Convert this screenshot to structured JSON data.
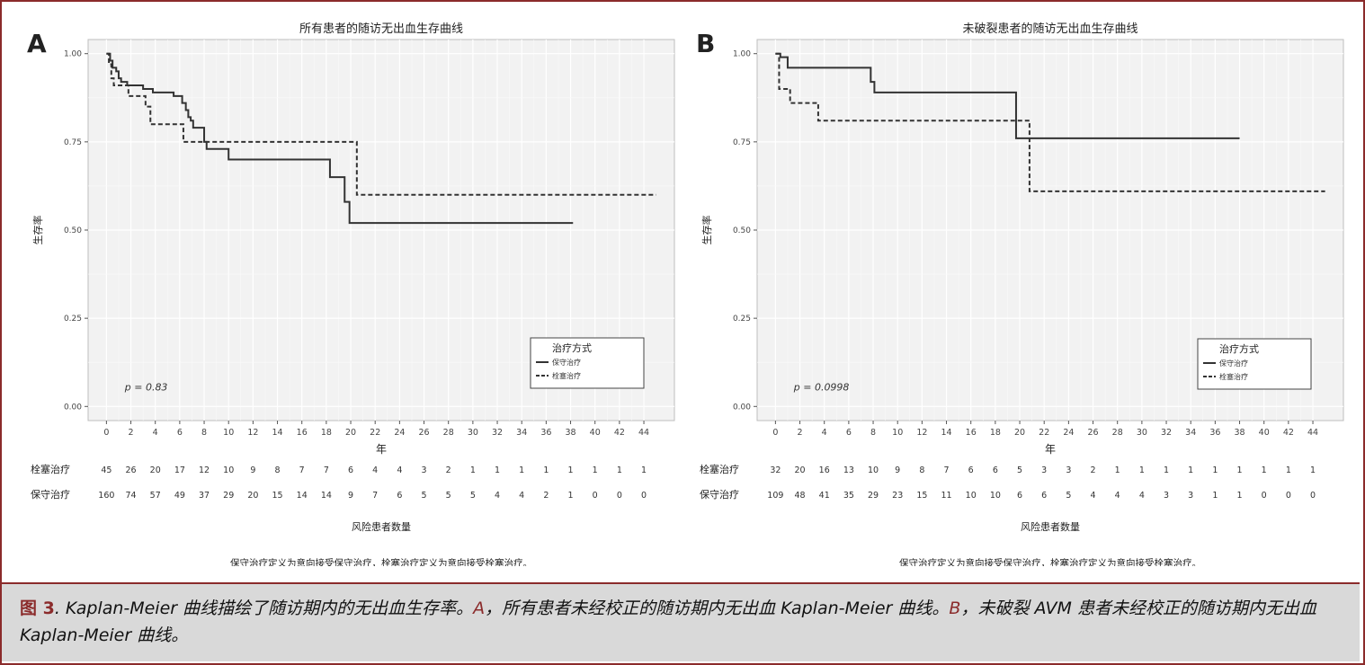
{
  "figure": {
    "fig_label": "图 3",
    "caption_intro": ". Kaplan-Meier 曲线描绘了随访期内的无出血生存率。",
    "caption_a_letter": "A",
    "caption_a_text": "，所有患者未经校正的随访期内无出血 Kaplan-Meier 曲线。",
    "caption_b_letter": "B",
    "caption_b_text": "，未破裂 AVM 患者未经校正的随访期内无出血 Kaplan-Meier 曲线。"
  },
  "chart_data": [
    {
      "type": "line",
      "panel_label": "A",
      "title": "所有患者的随访无出血生存曲线",
      "xlabel": "年",
      "ylabel": "生存率",
      "xlim": [
        -1.5,
        46.5
      ],
      "ylim": [
        -0.04,
        1.04
      ],
      "x_ticks": [
        0,
        2,
        4,
        6,
        8,
        10,
        12,
        14,
        16,
        18,
        20,
        22,
        24,
        26,
        28,
        30,
        32,
        34,
        36,
        38,
        40,
        42,
        44
      ],
      "y_ticks": [
        "0.00",
        "0.25",
        "0.50",
        "0.75",
        "1.00"
      ],
      "grid": true,
      "legend_title": "治疗方式",
      "legend_position": "bottom-right",
      "p_value": "p = 0.83",
      "series": [
        {
          "name": "保守治疗",
          "style": "solid",
          "x": [
            0,
            0.3,
            0.5,
            0.8,
            1.0,
            1.2,
            1.5,
            1.7,
            2.0,
            3.0,
            3.8,
            4.0,
            5.5,
            6.2,
            6.5,
            6.7,
            6.9,
            7.1,
            7.4,
            8.0,
            8.2,
            10.0,
            18.3,
            19.5,
            19.9,
            38.2
          ],
          "y": [
            1.0,
            0.98,
            0.96,
            0.95,
            0.93,
            0.92,
            0.92,
            0.91,
            0.91,
            0.9,
            0.89,
            0.89,
            0.88,
            0.86,
            0.84,
            0.82,
            0.81,
            0.79,
            0.79,
            0.75,
            0.73,
            0.7,
            0.65,
            0.58,
            0.52,
            0.52
          ]
        },
        {
          "name": "栓塞治疗",
          "style": "dashed",
          "x": [
            0,
            0.2,
            0.4,
            0.6,
            1.0,
            1.8,
            3.2,
            3.6,
            6.3,
            20.5,
            45.0
          ],
          "y": [
            1.0,
            0.97,
            0.93,
            0.91,
            0.91,
            0.88,
            0.85,
            0.8,
            0.75,
            0.6,
            0.6
          ]
        }
      ],
      "risk_table": {
        "title": "风险患者数量",
        "x": [
          0,
          2,
          4,
          6,
          8,
          10,
          12,
          14,
          16,
          18,
          20,
          22,
          24,
          26,
          28,
          30,
          32,
          34,
          36,
          38,
          40,
          42,
          44
        ],
        "rows": [
          {
            "label": "栓塞治疗",
            "values": [
              45,
              26,
              20,
              17,
              12,
              10,
              9,
              8,
              7,
              7,
              6,
              4,
              4,
              3,
              2,
              1,
              1,
              1,
              1,
              1,
              1,
              1,
              1
            ]
          },
          {
            "label": "保守治疗",
            "values": [
              160,
              74,
              57,
              49,
              37,
              29,
              20,
              15,
              14,
              14,
              9,
              7,
              6,
              5,
              5,
              5,
              4,
              4,
              2,
              1,
              0,
              0,
              0
            ]
          }
        ]
      },
      "footnote": "保守治疗定义为意向接受保守治疗，栓塞治疗定义为意向接受栓塞治疗。"
    },
    {
      "type": "line",
      "panel_label": "B",
      "title": "未破裂患者的随访无出血生存曲线",
      "xlabel": "年",
      "ylabel": "生存率",
      "xlim": [
        -1.5,
        46.5
      ],
      "ylim": [
        -0.04,
        1.04
      ],
      "x_ticks": [
        0,
        2,
        4,
        6,
        8,
        10,
        12,
        14,
        16,
        18,
        20,
        22,
        24,
        26,
        28,
        30,
        32,
        34,
        36,
        38,
        40,
        42,
        44
      ],
      "y_ticks": [
        "0.00",
        "0.25",
        "0.50",
        "0.75",
        "1.00"
      ],
      "grid": true,
      "legend_title": "治疗方式",
      "legend_position": "bottom-right",
      "p_value": "p = 0.0998",
      "series": [
        {
          "name": "保守治疗",
          "style": "solid",
          "x": [
            0,
            0.4,
            1.0,
            7.8,
            8.1,
            19.7,
            38.0
          ],
          "y": [
            1.0,
            0.99,
            0.96,
            0.92,
            0.89,
            0.76,
            0.76
          ]
        },
        {
          "name": "栓塞治疗",
          "style": "dashed",
          "x": [
            0,
            0.3,
            1.2,
            3.5,
            20.8,
            45.0
          ],
          "y": [
            1.0,
            0.9,
            0.86,
            0.81,
            0.61,
            0.61
          ]
        }
      ],
      "risk_table": {
        "title": "风险患者数量",
        "x": [
          0,
          2,
          4,
          6,
          8,
          10,
          12,
          14,
          16,
          18,
          20,
          22,
          24,
          26,
          28,
          30,
          32,
          34,
          36,
          38,
          40,
          42,
          44
        ],
        "rows": [
          {
            "label": "栓塞治疗",
            "values": [
              32,
              20,
              16,
              13,
              10,
              9,
              8,
              7,
              6,
              6,
              5,
              3,
              3,
              2,
              1,
              1,
              1,
              1,
              1,
              1,
              1,
              1,
              1
            ]
          },
          {
            "label": "保守治疗",
            "values": [
              109,
              48,
              41,
              35,
              29,
              23,
              15,
              11,
              10,
              10,
              6,
              6,
              5,
              4,
              4,
              4,
              3,
              3,
              1,
              1,
              0,
              0,
              0
            ]
          }
        ]
      },
      "footnote": "保守治疗定义为意向接受保守治疗，栓塞治疗定义为意向接受栓塞治疗。"
    }
  ]
}
